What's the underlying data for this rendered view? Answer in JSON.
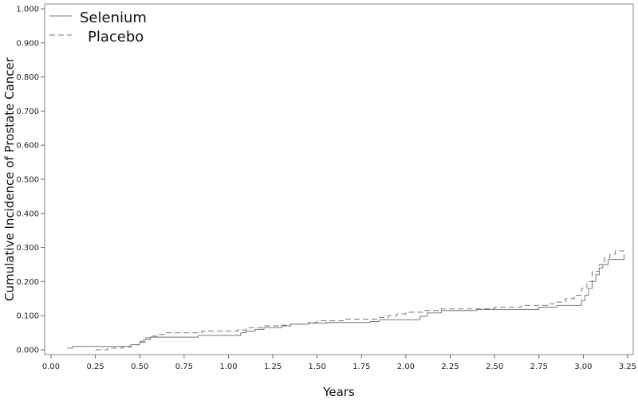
{
  "chart_data": {
    "type": "line",
    "title": "",
    "xlabel": "Years",
    "ylabel": "Cumulative Incidence of Prostate Cancer",
    "xlim": [
      0.0,
      3.25
    ],
    "ylim": [
      0.0,
      1.0
    ],
    "x_ticks": [
      "0.00",
      "0.25",
      "0.50",
      "0.75",
      "1.00",
      "1.25",
      "1.50",
      "1.75",
      "2.00",
      "2.25",
      "2.50",
      "2.75",
      "3.00",
      "3.25"
    ],
    "y_ticks": [
      "0.000",
      "0.100",
      "0.200",
      "0.300",
      "0.400",
      "0.500",
      "0.600",
      "0.700",
      "0.800",
      "0.900",
      "1.000"
    ],
    "grid": false,
    "legend_position": "top-left",
    "series": [
      {
        "name": "Selenium",
        "style": "solid",
        "color": "#777777",
        "points": [
          [
            0.09,
            0.005
          ],
          [
            0.12,
            0.01
          ],
          [
            0.4,
            0.01
          ],
          [
            0.45,
            0.015
          ],
          [
            0.5,
            0.022
          ],
          [
            0.53,
            0.03
          ],
          [
            0.56,
            0.037
          ],
          [
            0.8,
            0.037
          ],
          [
            0.83,
            0.042
          ],
          [
            1.05,
            0.042
          ],
          [
            1.07,
            0.05
          ],
          [
            1.1,
            0.055
          ],
          [
            1.15,
            0.06
          ],
          [
            1.2,
            0.065
          ],
          [
            1.3,
            0.07
          ],
          [
            1.35,
            0.075
          ],
          [
            1.45,
            0.078
          ],
          [
            1.55,
            0.08
          ],
          [
            1.8,
            0.083
          ],
          [
            1.85,
            0.088
          ],
          [
            2.05,
            0.088
          ],
          [
            2.08,
            0.098
          ],
          [
            2.12,
            0.108
          ],
          [
            2.2,
            0.115
          ],
          [
            2.4,
            0.118
          ],
          [
            2.75,
            0.125
          ],
          [
            2.85,
            0.13
          ],
          [
            2.97,
            0.13
          ],
          [
            2.99,
            0.145
          ],
          [
            3.01,
            0.16
          ],
          [
            3.03,
            0.18
          ],
          [
            3.05,
            0.2
          ],
          [
            3.07,
            0.22
          ],
          [
            3.09,
            0.24
          ],
          [
            3.11,
            0.25
          ],
          [
            3.14,
            0.265
          ],
          [
            3.22,
            0.265
          ],
          [
            3.23,
            0.28
          ]
        ]
      },
      {
        "name": "Placebo",
        "style": "dashed",
        "color": "#777777",
        "points": [
          [
            0.25,
            0.0
          ],
          [
            0.32,
            0.005
          ],
          [
            0.4,
            0.008
          ],
          [
            0.45,
            0.015
          ],
          [
            0.5,
            0.025
          ],
          [
            0.52,
            0.035
          ],
          [
            0.56,
            0.04
          ],
          [
            0.6,
            0.045
          ],
          [
            0.65,
            0.05
          ],
          [
            0.85,
            0.055
          ],
          [
            1.05,
            0.058
          ],
          [
            1.1,
            0.065
          ],
          [
            1.2,
            0.07
          ],
          [
            1.3,
            0.072
          ],
          [
            1.35,
            0.075
          ],
          [
            1.45,
            0.08
          ],
          [
            1.5,
            0.085
          ],
          [
            1.65,
            0.09
          ],
          [
            1.85,
            0.095
          ],
          [
            1.9,
            0.1
          ],
          [
            1.95,
            0.105
          ],
          [
            2.0,
            0.11
          ],
          [
            2.1,
            0.115
          ],
          [
            2.2,
            0.12
          ],
          [
            2.5,
            0.125
          ],
          [
            2.65,
            0.13
          ],
          [
            2.8,
            0.135
          ],
          [
            2.85,
            0.14
          ],
          [
            2.9,
            0.15
          ],
          [
            2.95,
            0.16
          ],
          [
            2.99,
            0.18
          ],
          [
            3.02,
            0.2
          ],
          [
            3.05,
            0.23
          ],
          [
            3.09,
            0.25
          ],
          [
            3.12,
            0.27
          ],
          [
            3.15,
            0.28
          ],
          [
            3.18,
            0.29
          ],
          [
            3.23,
            0.29
          ]
        ]
      }
    ]
  }
}
